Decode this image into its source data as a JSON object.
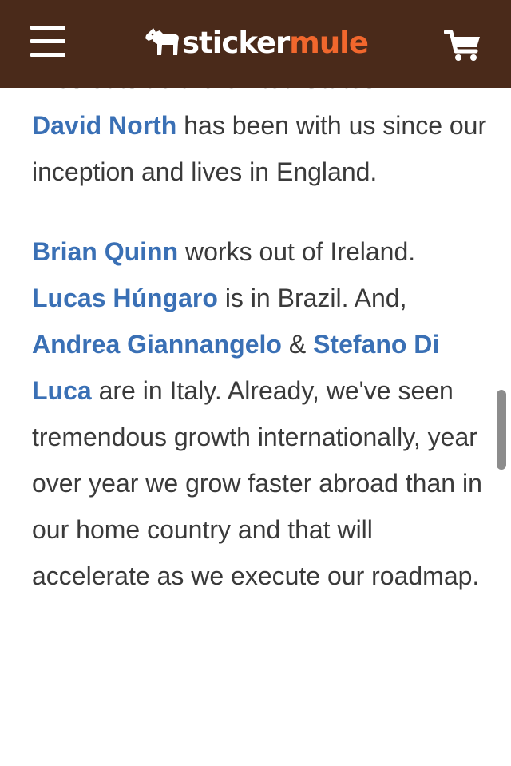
{
  "header": {
    "logo_sticker": "sticker",
    "logo_mule": "mule",
    "menu_icon": "hamburger-menu-icon",
    "cart_icon": "shopping-cart-icon",
    "colors": {
      "background": "#4a2a1a",
      "logo_accent": "#f1672d",
      "icons": "#ffffff"
    }
  },
  "article": {
    "partial_line": "lives outside the United States.",
    "p1": {
      "link_david": "David North",
      "text_1": " has been with us since our inception and lives in England."
    },
    "p2": {
      "link_brian": "Brian Quinn",
      "text_1": " works out of Ireland. ",
      "link_lucas": "Lucas Húngaro",
      "text_2": " is in Brazil. And, ",
      "link_andrea": "Andrea Giannangelo",
      "text_3": " & ",
      "link_stefano": "Stefano Di Luca",
      "text_4": " are in Italy. Already, we've seen tremendous growth internationally, year over year we grow faster abroad than in our home country and that will accelerate as we execute our roadmap."
    },
    "colors": {
      "text": "#3a3a3a",
      "link": "#3a70b5"
    }
  }
}
